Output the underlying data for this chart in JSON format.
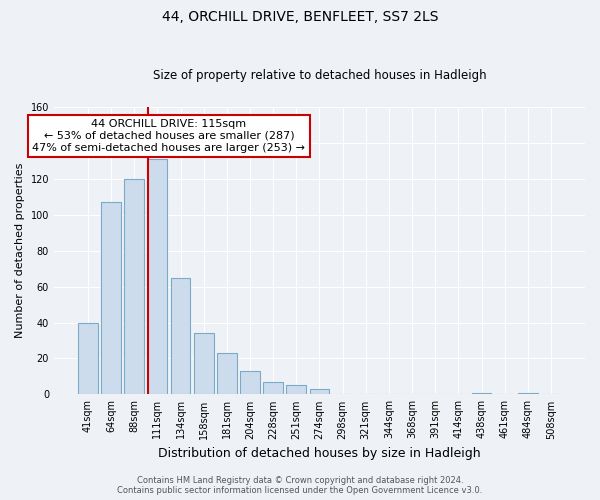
{
  "title": "44, ORCHILL DRIVE, BENFLEET, SS7 2LS",
  "subtitle": "Size of property relative to detached houses in Hadleigh",
  "xlabel": "Distribution of detached houses by size in Hadleigh",
  "ylabel": "Number of detached properties",
  "bar_labels": [
    "41sqm",
    "64sqm",
    "88sqm",
    "111sqm",
    "134sqm",
    "158sqm",
    "181sqm",
    "204sqm",
    "228sqm",
    "251sqm",
    "274sqm",
    "298sqm",
    "321sqm",
    "344sqm",
    "368sqm",
    "391sqm",
    "414sqm",
    "438sqm",
    "461sqm",
    "484sqm",
    "508sqm"
  ],
  "bar_heights": [
    40,
    107,
    120,
    131,
    65,
    34,
    23,
    13,
    7,
    5,
    3,
    0,
    0,
    0,
    0,
    0,
    0,
    1,
    0,
    1,
    0
  ],
  "bar_color": "#cddcec",
  "bar_edge_color": "#7aaac8",
  "vline_color": "#cc0000",
  "ylim": [
    0,
    160
  ],
  "yticks": [
    0,
    20,
    40,
    60,
    80,
    100,
    120,
    140,
    160
  ],
  "annotation_text": "44 ORCHILL DRIVE: 115sqm\n← 53% of detached houses are smaller (287)\n47% of semi-detached houses are larger (253) →",
  "annotation_box_color": "#ffffff",
  "annotation_box_edge": "#cc0000",
  "footer_line1": "Contains HM Land Registry data © Crown copyright and database right 2024.",
  "footer_line2": "Contains public sector information licensed under the Open Government Licence v3.0.",
  "background_color": "#eef2f7",
  "grid_color": "#ffffff",
  "title_fontsize": 10,
  "subtitle_fontsize": 8.5,
  "ylabel_fontsize": 8,
  "xlabel_fontsize": 9,
  "tick_fontsize": 7,
  "ann_fontsize": 8,
  "footer_fontsize": 6
}
